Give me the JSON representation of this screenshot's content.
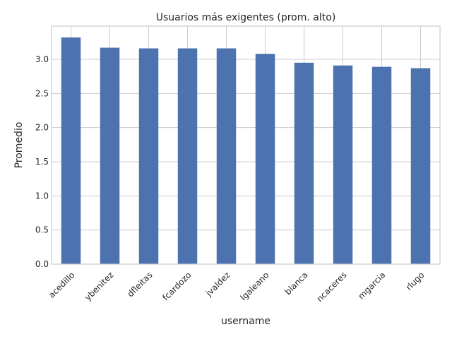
{
  "chart_data": {
    "type": "bar",
    "title": "Usuarios más exigentes (prom. alto)",
    "xlabel": "username",
    "ylabel": "Promedio",
    "categories": [
      "acedillo",
      "ybenitez",
      "dfleitas",
      "fcardozo",
      "jvaldez",
      "lgaleano",
      "blanca",
      "ncaceres",
      "mgarcia",
      "rlugo"
    ],
    "values": [
      3.32,
      3.17,
      3.16,
      3.16,
      3.16,
      3.08,
      2.95,
      2.91,
      2.89,
      2.87
    ],
    "yticks": [
      "0.0",
      "0.5",
      "1.0",
      "1.5",
      "2.0",
      "2.5",
      "3.0"
    ],
    "ylim": [
      0,
      3.486
    ],
    "grid": true,
    "legend": "none",
    "bar_color": "#4c72b0",
    "grid_color": "#cccccc",
    "text_color": "#262626"
  }
}
